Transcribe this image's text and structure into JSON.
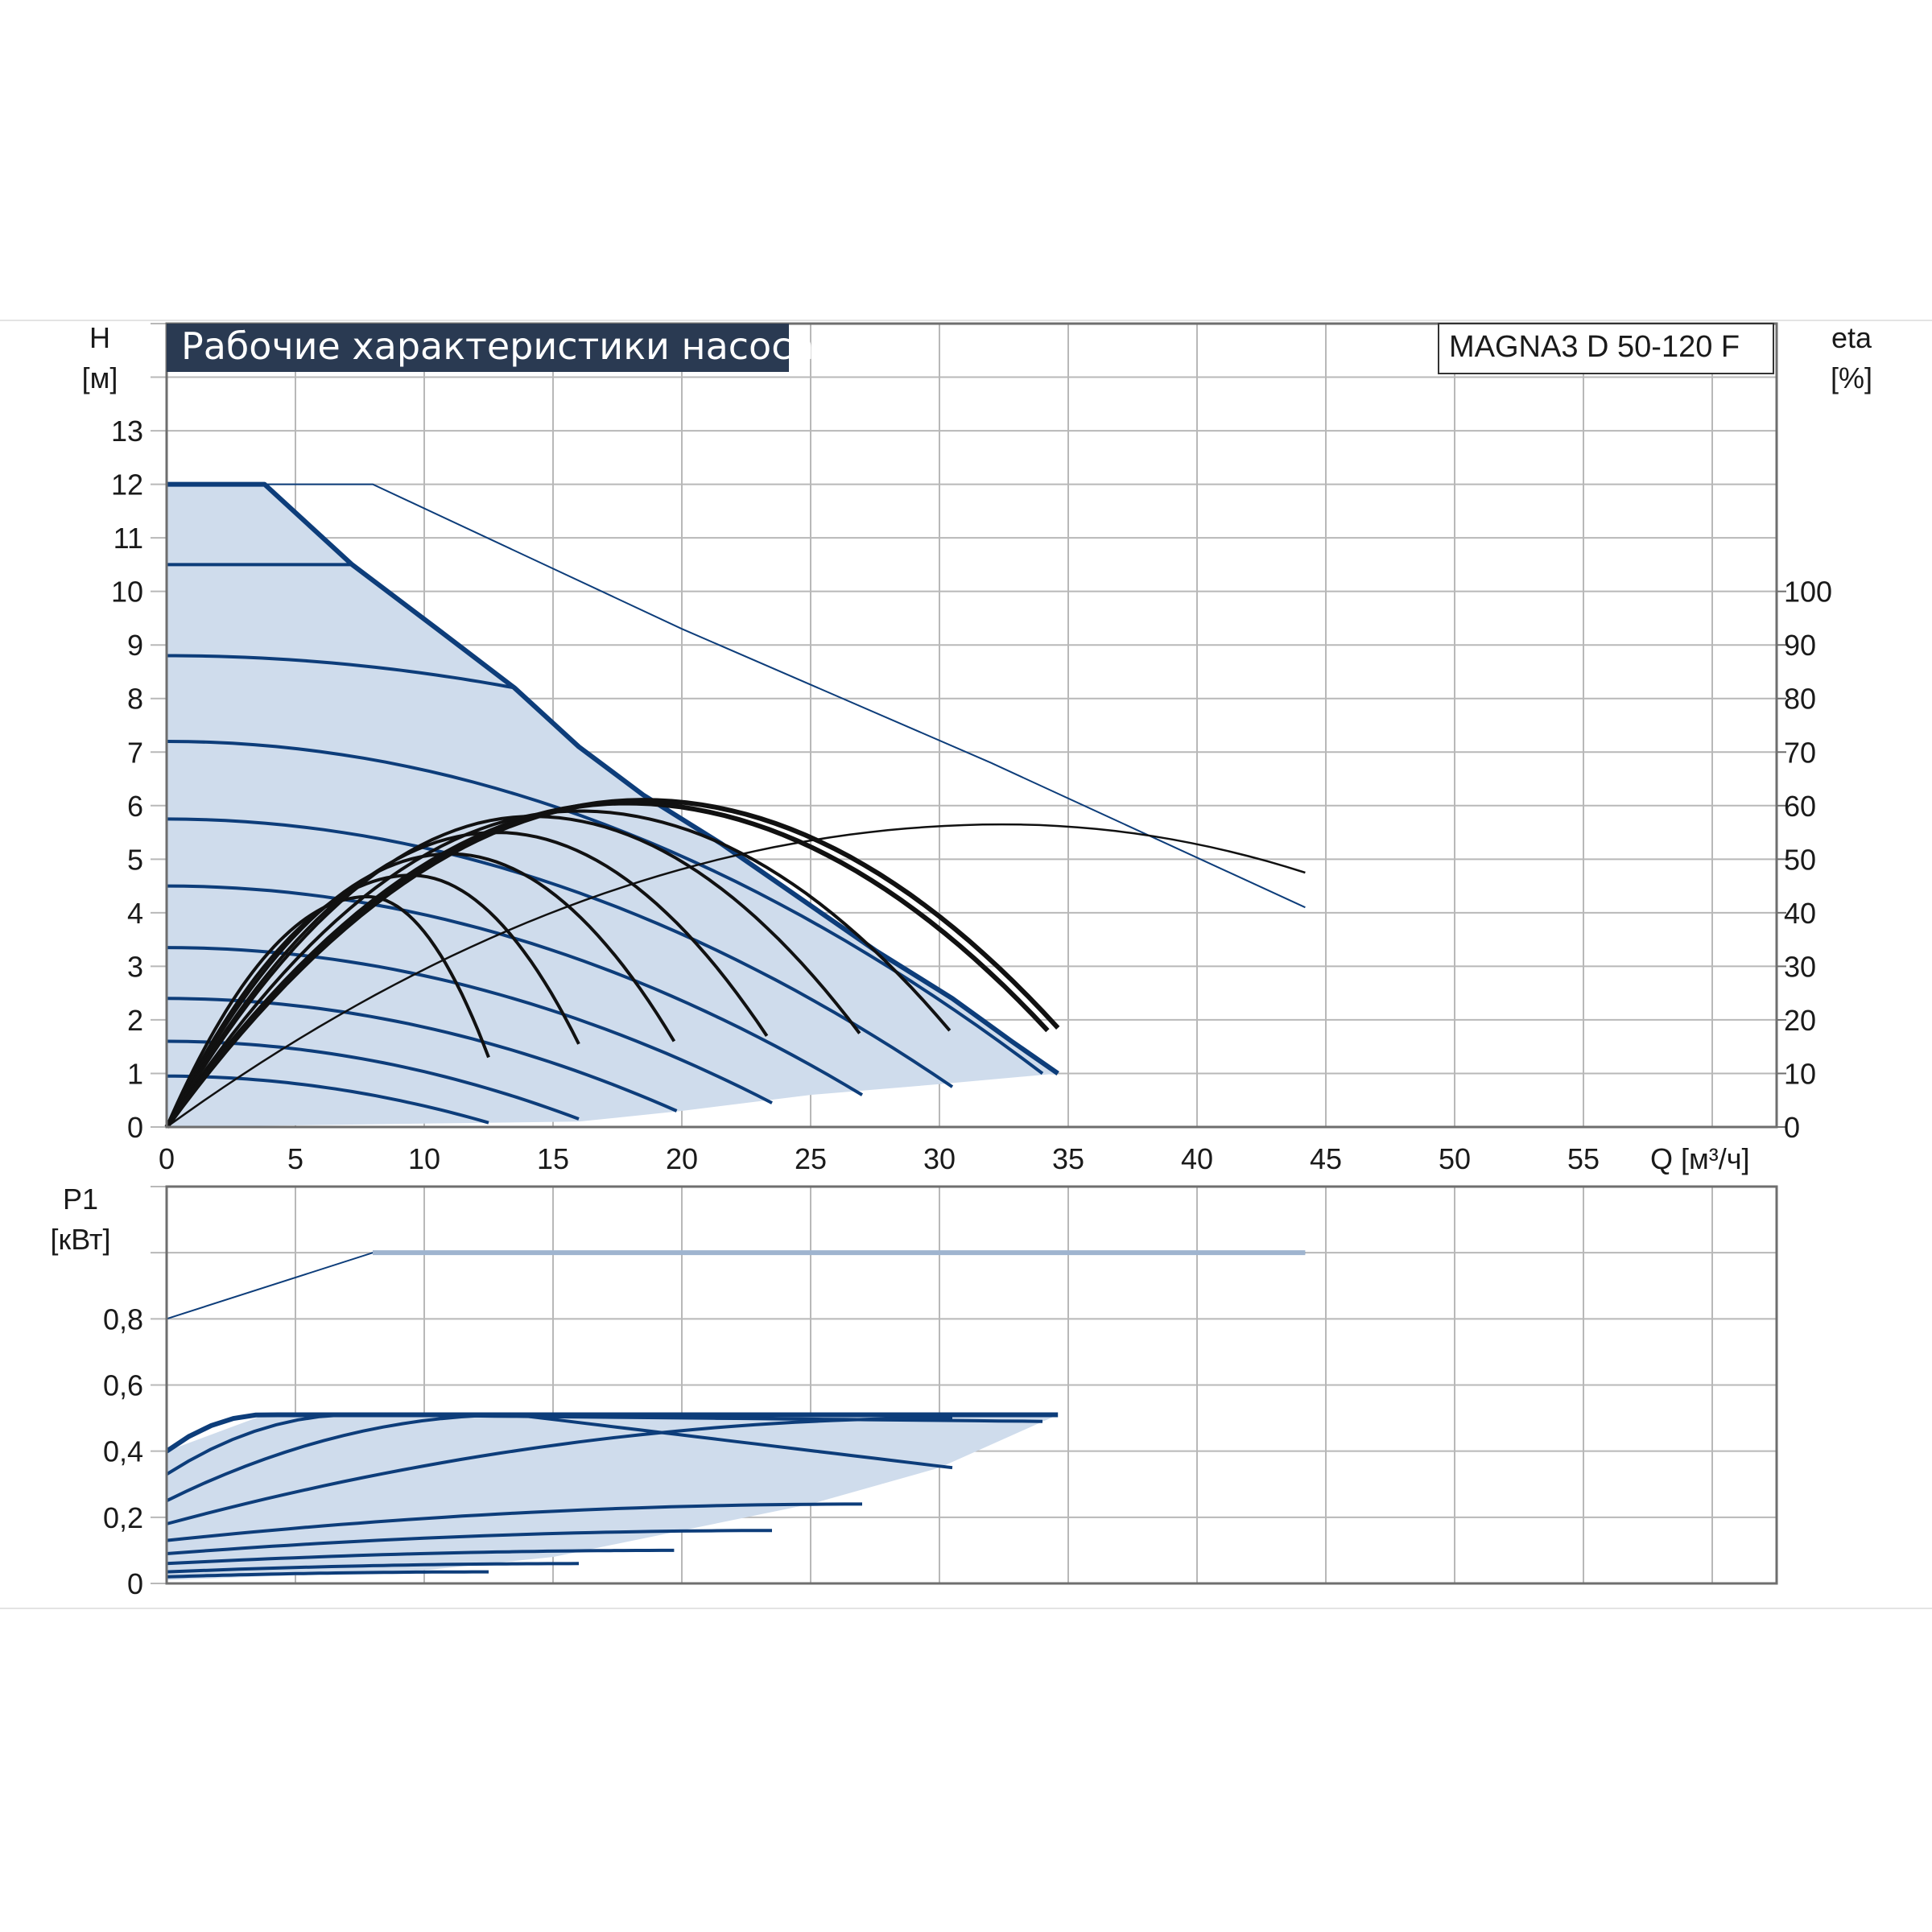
{
  "colors": {
    "grid": "#b8b8b8",
    "frame": "#6e6e6e",
    "blue": "#0d3d7a",
    "fill": "#cfdcec",
    "black": "#111111",
    "title_bg": "#2a3a52"
  },
  "header": {
    "title": "Рабочие характеристики насоса",
    "model": "MAGNA3 D 50-120 F"
  },
  "chart_data": [
    {
      "type": "line",
      "name": "head",
      "ylabel_top": "H",
      "ylabel_unit": "[м]",
      "y2label_top": "eta",
      "y2label_unit": "[%]",
      "xlabel": "Q [м³/ч]",
      "xlim": [
        0,
        62.5
      ],
      "ylim": [
        0,
        15
      ],
      "y2lim": [
        0,
        150
      ],
      "x_ticks": [
        "0",
        "5",
        "10",
        "15",
        "20",
        "25",
        "30",
        "35",
        "40",
        "45",
        "50",
        "55"
      ],
      "y_ticks": [
        "0",
        "1",
        "2",
        "3",
        "4",
        "5",
        "6",
        "7",
        "8",
        "9",
        "10",
        "11",
        "12",
        "13"
      ],
      "y2_ticks": [
        "0",
        "10",
        "20",
        "30",
        "40",
        "50",
        "60",
        "70",
        "80",
        "90",
        "100"
      ],
      "grid": true,
      "operating_area": [
        [
          0,
          12
        ],
        [
          3.8,
          12
        ],
        [
          7.2,
          10.5
        ],
        [
          10.5,
          9.3
        ],
        [
          13.5,
          8.2
        ],
        [
          16,
          7.1
        ],
        [
          18.5,
          6.2
        ],
        [
          21.5,
          5.3
        ],
        [
          24.5,
          4.3
        ],
        [
          27.5,
          3.3
        ],
        [
          30.5,
          2.4
        ],
        [
          32.8,
          1.6
        ],
        [
          34.6,
          1.0
        ],
        [
          30,
          0.8
        ],
        [
          25,
          0.6
        ],
        [
          20,
          0.3
        ],
        [
          16,
          0.1
        ],
        [
          0,
          0
        ]
      ],
      "max_curve": [
        [
          0,
          12
        ],
        [
          3.8,
          12
        ],
        [
          7.2,
          10.5
        ],
        [
          10.5,
          9.3
        ],
        [
          13.5,
          8.2
        ],
        [
          16,
          7.1
        ],
        [
          18.5,
          6.2
        ],
        [
          21.5,
          5.3
        ],
        [
          24.5,
          4.3
        ],
        [
          27.5,
          3.3
        ],
        [
          30.5,
          2.4
        ],
        [
          32.8,
          1.6
        ],
        [
          34.6,
          1.0
        ]
      ],
      "speed_curves": [
        {
          "h0": 10.5,
          "q_end": 7.2,
          "h_end": 10.5
        },
        {
          "h0": 8.8,
          "q_end": 13.5,
          "h_end": 8.2
        },
        {
          "h0": 7.2,
          "q_end": 34.0,
          "h_end": 1.0
        },
        {
          "h0": 5.75,
          "q_end": 30.5,
          "h_end": 0.75
        },
        {
          "h0": 4.5,
          "q_end": 27.0,
          "h_end": 0.6
        },
        {
          "h0": 3.35,
          "q_end": 23.5,
          "h_end": 0.45
        },
        {
          "h0": 2.4,
          "q_end": 19.8,
          "h_end": 0.3
        },
        {
          "h0": 1.6,
          "q_end": 16.0,
          "h_end": 0.15
        },
        {
          "h0": 0.95,
          "q_end": 12.5,
          "h_end": 0.08
        }
      ],
      "extended_max_curve": [
        [
          0,
          12
        ],
        [
          8,
          12
        ],
        [
          20,
          9.3
        ],
        [
          32,
          6.8
        ],
        [
          44.2,
          4.1
        ]
      ],
      "efficiency_curves": [
        {
          "apex_q": 7.8,
          "apex_eta": 43,
          "q_end": 12.5,
          "eta_end": 13
        },
        {
          "apex_q": 9.5,
          "apex_eta": 47,
          "q_end": 16.0,
          "eta_end": 15.5
        },
        {
          "apex_q": 11.0,
          "apex_eta": 51,
          "q_end": 19.7,
          "eta_end": 16
        },
        {
          "apex_q": 12.8,
          "apex_eta": 55,
          "q_end": 23.3,
          "eta_end": 17
        },
        {
          "apex_q": 14.2,
          "apex_eta": 58,
          "q_end": 26.9,
          "eta_end": 17.5
        },
        {
          "apex_q": 16.0,
          "apex_eta": 59,
          "q_end": 30.4,
          "eta_end": 18
        },
        {
          "apex_q": 17.8,
          "apex_eta": 60.5,
          "q_end": 34.2,
          "eta_end": 18
        },
        {
          "apex_q": 18.5,
          "apex_eta": 61,
          "q_end": 34.6,
          "eta_end": 18.5
        }
      ],
      "efficiency_extended": {
        "apex_q": 32.5,
        "apex_eta": 56.5,
        "q_end": 44.2,
        "eta_end": 47.5
      }
    },
    {
      "type": "line",
      "name": "power",
      "ylabel_top": "P1",
      "ylabel_unit": "[кВт]",
      "xlim": [
        0,
        62.5
      ],
      "ylim": [
        0,
        1.2
      ],
      "y_ticks": [
        "0",
        "0,2",
        "0,4",
        "0,6",
        "0,8"
      ],
      "grid": true,
      "operating_area": [
        [
          0,
          0.4
        ],
        [
          3.8,
          0.51
        ],
        [
          34.6,
          0.51
        ],
        [
          30,
          0.35
        ],
        [
          25,
          0.24
        ],
        [
          20,
          0.16
        ],
        [
          15,
          0.08
        ],
        [
          10,
          0.04
        ],
        [
          0,
          0.01
        ]
      ],
      "power_curves": [
        {
          "p0": 0.4,
          "p_knee": 0.51,
          "q_knee": 3.8,
          "q_end": 34.6,
          "p_end": 0.51
        },
        {
          "p0": 0.33,
          "p_knee": 0.51,
          "q_knee": 7.2,
          "q_end": 34.0,
          "p_end": 0.49
        },
        {
          "p0": 0.25,
          "p_knee": 0.51,
          "q_knee": 13.5,
          "q_end": 30.5,
          "p_end": 0.35
        },
        {
          "p0": 0.18,
          "p_knee": 0.5,
          "q_knee": 30.5,
          "q_end": 30.5,
          "p_end": 0.35
        },
        {
          "p0": 0.13,
          "p_knee": 0.24,
          "q_knee": 27.0,
          "q_end": 27.0,
          "p_end": 0.24
        },
        {
          "p0": 0.09,
          "p_knee": 0.16,
          "q_knee": 23.5,
          "q_end": 23.5,
          "p_end": 0.16
        },
        {
          "p0": 0.06,
          "p_knee": 0.1,
          "q_knee": 19.7,
          "q_end": 19.7,
          "p_end": 0.1
        },
        {
          "p0": 0.035,
          "p_knee": 0.06,
          "q_knee": 16.0,
          "q_end": 16.0,
          "p_end": 0.06
        },
        {
          "p0": 0.02,
          "p_knee": 0.035,
          "q_knee": 12.5,
          "q_end": 12.5,
          "p_end": 0.035
        }
      ],
      "extended_power": [
        [
          0,
          0.8
        ],
        [
          8,
          1.0
        ],
        [
          44.2,
          1.0
        ]
      ]
    }
  ]
}
